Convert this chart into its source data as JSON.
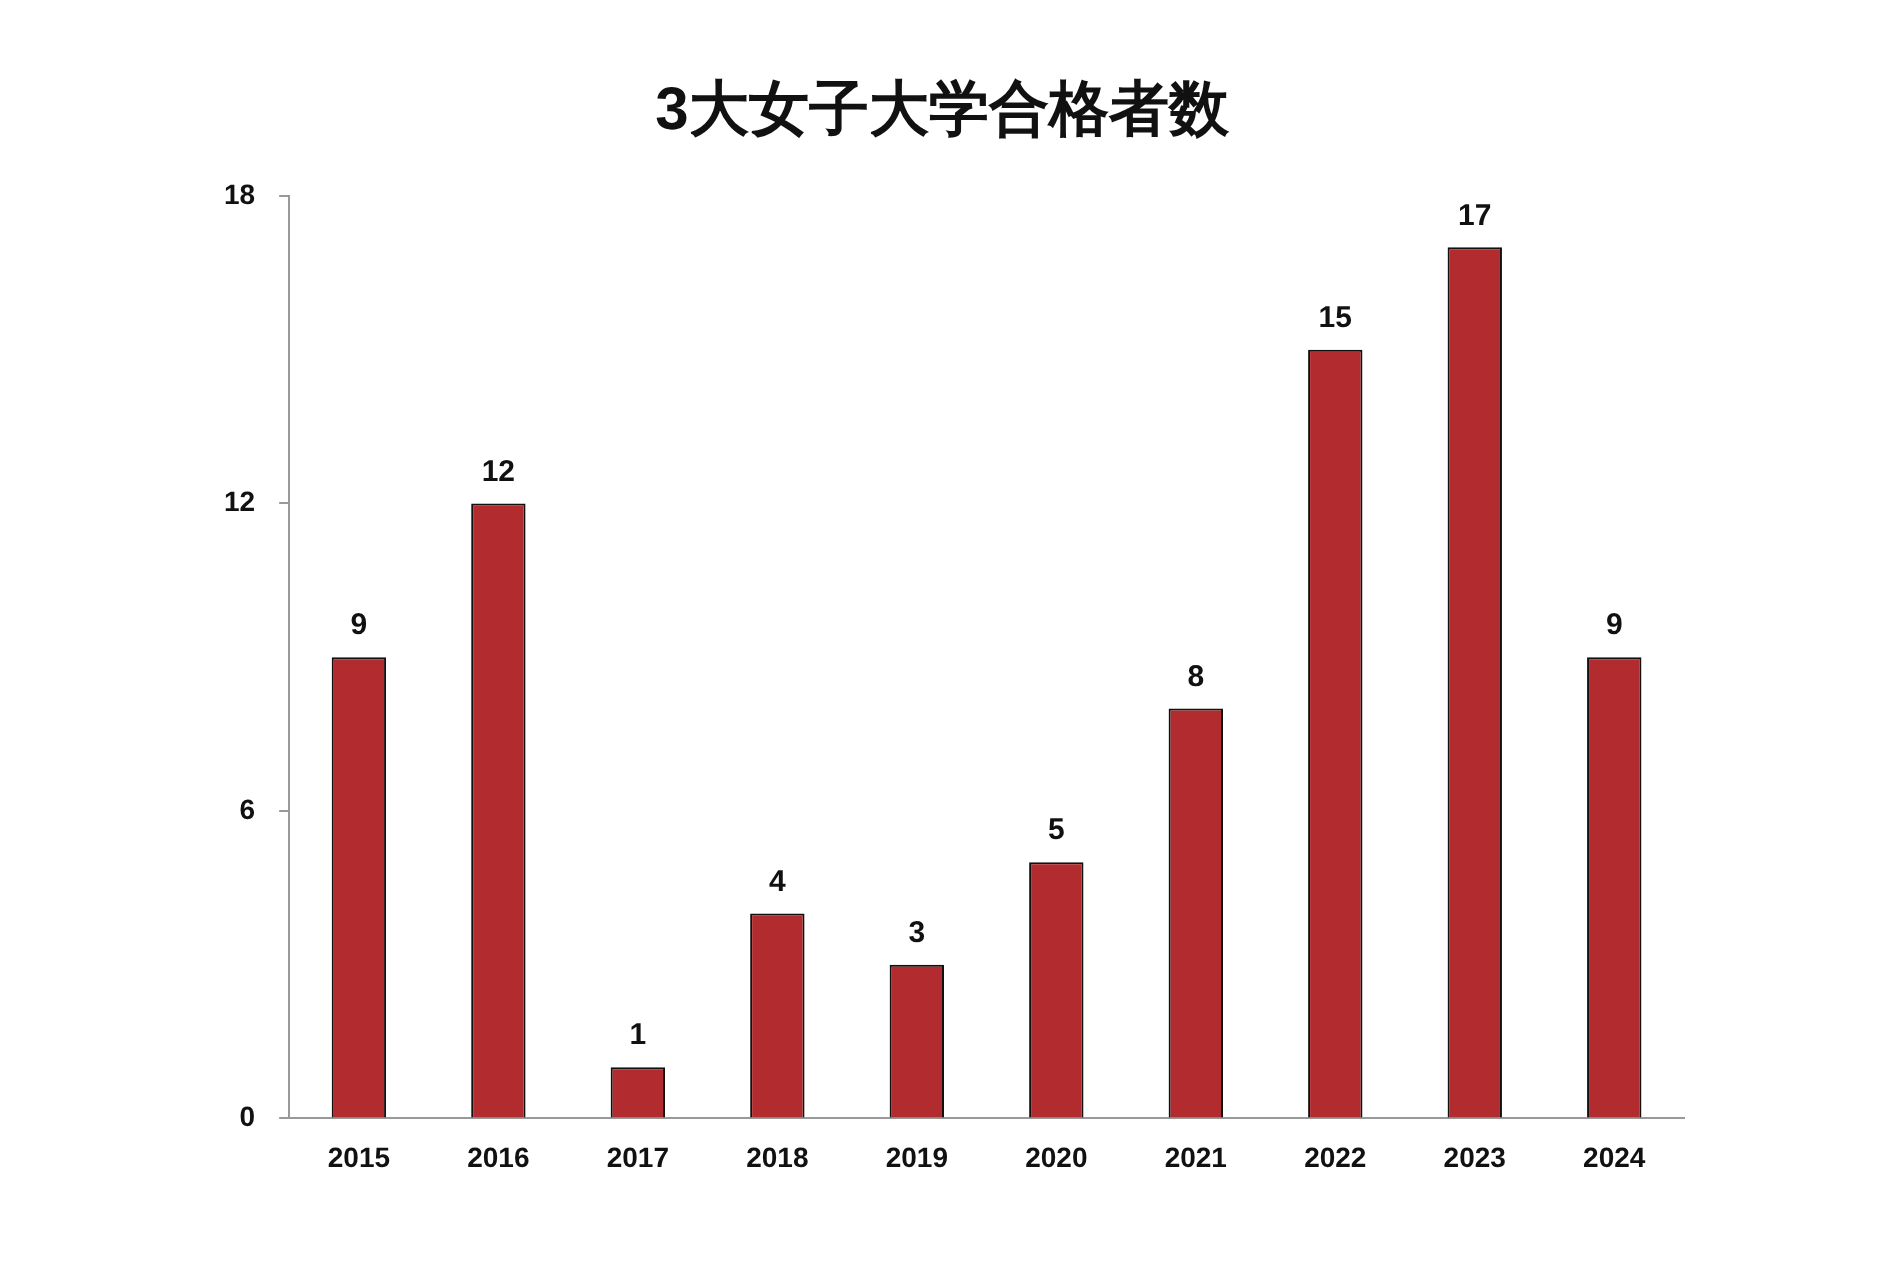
{
  "chart_data": {
    "type": "bar",
    "title": "3大女子大学合格者数",
    "categories": [
      "2015",
      "2016",
      "2017",
      "2018",
      "2019",
      "2020",
      "2021",
      "2022",
      "2023",
      "2024"
    ],
    "values": [
      9,
      12,
      1,
      4,
      3,
      5,
      8,
      15,
      17,
      9
    ],
    "color": "#b22c2f",
    "ylim": [
      0,
      18
    ],
    "yticks": [
      0,
      6,
      12,
      18
    ],
    "grid": false,
    "legend": false,
    "data_labels": true
  }
}
